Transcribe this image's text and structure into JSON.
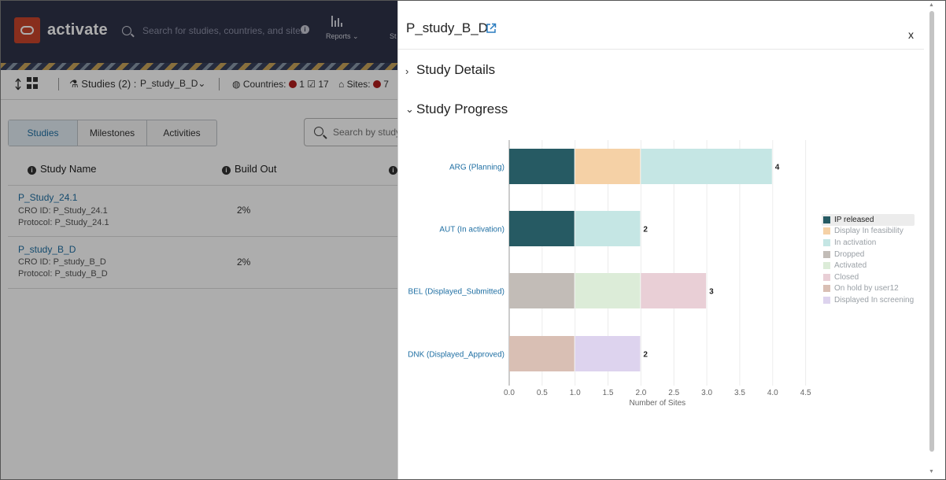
{
  "app": {
    "name": "activate",
    "search_placeholder": "Search for studies, countries, and sites",
    "reports_label": "Reports",
    "partial_label": "St"
  },
  "subbar": {
    "studies_label": "Studies (2) :",
    "studies_value": "P_study_B_D",
    "countries_label": "Countries:",
    "countries_red": "1",
    "countries_total": "17",
    "sites_label": "Sites:",
    "sites_red": "7"
  },
  "tabs": [
    "Studies",
    "Milestones",
    "Activities"
  ],
  "list_search_placeholder": "Search by study",
  "columns": [
    "Study Name",
    "Build Out"
  ],
  "rows": [
    {
      "name": "P_Study_24.1",
      "cro": "CRO ID: P_Study_24.1",
      "protocol": "Protocol: P_Study_24.1",
      "build_out": "2%"
    },
    {
      "name": "P_study_B_D",
      "cro": "CRO ID: P_study_B_D",
      "protocol": "Protocol: P_study_B_D",
      "build_out": "2%"
    }
  ],
  "drawer": {
    "title": "P_study_B_D",
    "close_label": "x",
    "section_details": "Study Details",
    "section_progress": "Study Progress"
  },
  "colors": {
    "ip_released": "#265a63",
    "display_in_feasibility": "#f5d1a6",
    "in_activation": "#c5e6e4",
    "dropped": "#c2bcb7",
    "activated": "#dcecd8",
    "closed": "#e9cfd6",
    "on_hold": "#d9bfb4",
    "displayed_in_screening": "#ddd3ee"
  },
  "chart_data": {
    "type": "bar",
    "orientation": "horizontal",
    "stacked": true,
    "categories": [
      "ARG (Planning)",
      "AUT (In activation)",
      "BEL (Displayed_Submitted)",
      "DNK (Displayed_Approved)"
    ],
    "series": [
      {
        "name": "IP released",
        "color": "#265a63",
        "values": [
          1,
          1,
          0,
          0
        ]
      },
      {
        "name": "Display In feasibility",
        "color": "#f5d1a6",
        "values": [
          1,
          0,
          0,
          0
        ]
      },
      {
        "name": "In activation",
        "color": "#c5e6e4",
        "values": [
          2,
          1,
          0,
          0
        ]
      },
      {
        "name": "Dropped",
        "color": "#c2bcb7",
        "values": [
          0,
          0,
          1,
          0
        ]
      },
      {
        "name": "Activated",
        "color": "#dcecd8",
        "values": [
          0,
          0,
          1,
          0
        ]
      },
      {
        "name": "Closed",
        "color": "#e9cfd6",
        "values": [
          0,
          0,
          1,
          0
        ]
      },
      {
        "name": "On hold by user12",
        "color": "#d9bfb4",
        "values": [
          0,
          0,
          0,
          1
        ]
      },
      {
        "name": "Displayed In screening",
        "color": "#ddd3ee",
        "values": [
          0,
          0,
          0,
          1
        ]
      }
    ],
    "totals": [
      4,
      2,
      3,
      2
    ],
    "xlabel": "Number of Sites",
    "xlim": [
      0,
      4.5
    ],
    "xticks": [
      "0.0",
      "0.5",
      "1.0",
      "1.5",
      "2.0",
      "2.5",
      "3.0",
      "3.5",
      "4.0",
      "4.5"
    ],
    "grid": true,
    "legend_position": "right"
  }
}
